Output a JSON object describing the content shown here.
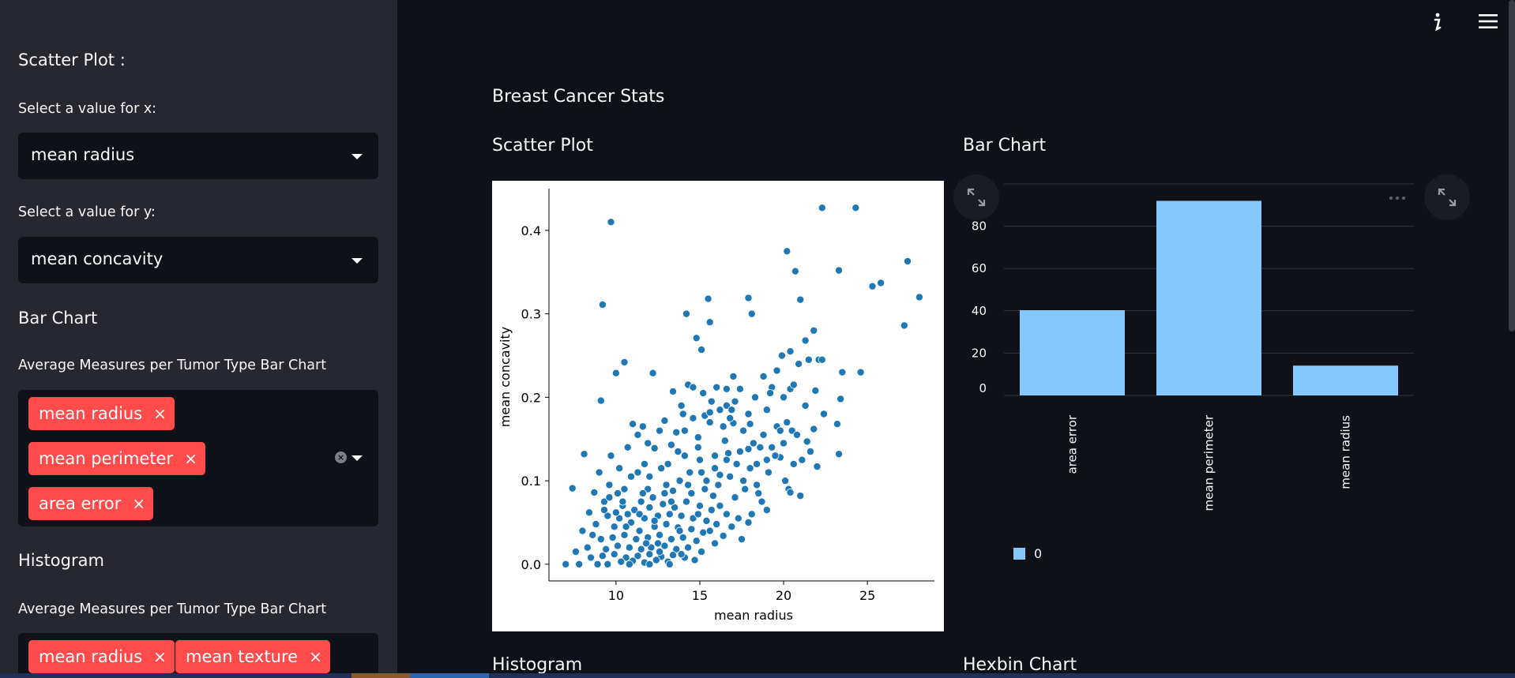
{
  "sidebar": {
    "scatter_title": "Scatter Plot :",
    "x_label": "Select a value for x:",
    "x_value": "mean radius",
    "y_label": "Select a value for y:",
    "y_value": "mean concavity",
    "bar_title": "Bar Chart",
    "bar_label": "Average Measures per Tumor Type Bar Chart",
    "bar_tags": [
      "mean radius",
      "mean perimeter",
      "area error"
    ],
    "hist_title": "Histogram",
    "hist_label": "Average Measures per Tumor Type Bar Chart",
    "hist_tags": [
      "mean radius",
      "mean texture"
    ],
    "tag_close": "×"
  },
  "main": {
    "title": "Breast Cancer Stats",
    "scatter_heading": "Scatter Plot",
    "bar_heading": "Bar Chart",
    "histogram_heading": "Histogram",
    "hexbin_heading": "Hexbin Chart",
    "info_icon": "info-icon",
    "menu_icon": "hamburger-menu-icon"
  },
  "colors": {
    "tag": "#ff4b4b",
    "scatter_point": "#1f77b4",
    "bar": "#83c9ff",
    "sidebar_bg": "#262730",
    "main_bg": "#0e1117"
  },
  "chart_data": [
    {
      "type": "scatter",
      "xlabel": "mean radius",
      "ylabel": "mean concavity",
      "xlim": [
        6.0,
        29.0
      ],
      "ylim": [
        -0.02,
        0.45
      ],
      "xticks": [
        10,
        15,
        20,
        25
      ],
      "yticks": [
        0.0,
        0.1,
        0.2,
        0.3,
        0.4
      ],
      "x_tick_labels": [
        "10",
        "15",
        "20",
        "25"
      ],
      "y_tick_labels": [
        "0.0",
        "0.1",
        "0.2",
        "0.3",
        "0.4"
      ],
      "points": [
        [
          9.7,
          0.41
        ],
        [
          22.3,
          0.427
        ],
        [
          24.3,
          0.427
        ],
        [
          27.4,
          0.363
        ],
        [
          28.1,
          0.32
        ],
        [
          25.8,
          0.337
        ],
        [
          25.3,
          0.333
        ],
        [
          27.2,
          0.286
        ],
        [
          23.3,
          0.352
        ],
        [
          20.7,
          0.351
        ],
        [
          20.2,
          0.375
        ],
        [
          9.2,
          0.311
        ],
        [
          15.5,
          0.318
        ],
        [
          17.9,
          0.319
        ],
        [
          21.0,
          0.317
        ],
        [
          15.6,
          0.29
        ],
        [
          14.2,
          0.3
        ],
        [
          18.1,
          0.3
        ],
        [
          21.8,
          0.28
        ],
        [
          21.3,
          0.268
        ],
        [
          14.8,
          0.271
        ],
        [
          20.4,
          0.255
        ],
        [
          19.9,
          0.25
        ],
        [
          15.1,
          0.257
        ],
        [
          22.1,
          0.245
        ],
        [
          21.5,
          0.245
        ],
        [
          20.9,
          0.24
        ],
        [
          19.6,
          0.232
        ],
        [
          24.6,
          0.23
        ],
        [
          23.5,
          0.23
        ],
        [
          10.5,
          0.242
        ],
        [
          10.0,
          0.229
        ],
        [
          12.2,
          0.229
        ],
        [
          9.1,
          0.196
        ],
        [
          14.3,
          0.215
        ],
        [
          14.6,
          0.212
        ],
        [
          16.0,
          0.212
        ],
        [
          17.4,
          0.21
        ],
        [
          19.3,
          0.212
        ],
        [
          20.4,
          0.21
        ],
        [
          18.8,
          0.225
        ],
        [
          17.0,
          0.225
        ],
        [
          16.6,
          0.21
        ],
        [
          13.4,
          0.207
        ],
        [
          15.2,
          0.205
        ],
        [
          23.4,
          0.198
        ],
        [
          21.3,
          0.19
        ],
        [
          20.0,
          0.2
        ],
        [
          18.3,
          0.2
        ],
        [
          16.6,
          0.19
        ],
        [
          15.7,
          0.195
        ],
        [
          13.9,
          0.19
        ],
        [
          16.9,
          0.185
        ],
        [
          11.0,
          0.168
        ],
        [
          11.6,
          0.165
        ],
        [
          12.9,
          0.172
        ],
        [
          14.6,
          0.175
        ],
        [
          15.6,
          0.17
        ],
        [
          17.0,
          0.169
        ],
        [
          18.0,
          0.168
        ],
        [
          19.6,
          0.165
        ],
        [
          20.5,
          0.16
        ],
        [
          21.8,
          0.162
        ],
        [
          23.2,
          0.168
        ],
        [
          13.6,
          0.158
        ],
        [
          11.3,
          0.155
        ],
        [
          14.9,
          0.152
        ],
        [
          16.5,
          0.148
        ],
        [
          18.2,
          0.145
        ],
        [
          19.3,
          0.14
        ],
        [
          20.8,
          0.155
        ],
        [
          21.4,
          0.147
        ],
        [
          23.3,
          0.132
        ],
        [
          22.0,
          0.117
        ],
        [
          20.3,
          0.09
        ],
        [
          20.4,
          0.086
        ],
        [
          19.1,
          0.11
        ],
        [
          18.0,
          0.115
        ],
        [
          17.2,
          0.12
        ],
        [
          8.1,
          0.132
        ],
        [
          9.7,
          0.13
        ],
        [
          12.3,
          0.139
        ],
        [
          13.3,
          0.143
        ],
        [
          14.1,
          0.13
        ],
        [
          15.0,
          0.125
        ],
        [
          15.9,
          0.13
        ],
        [
          16.7,
          0.133
        ],
        [
          17.9,
          0.138
        ],
        [
          19.0,
          0.125
        ],
        [
          19.8,
          0.128
        ],
        [
          16.2,
          0.107
        ],
        [
          17.6,
          0.1
        ],
        [
          18.4,
          0.095
        ],
        [
          15.4,
          0.1
        ],
        [
          14.4,
          0.11
        ],
        [
          12.7,
          0.115
        ],
        [
          11.7,
          0.12
        ],
        [
          10.9,
          0.105
        ],
        [
          9.6,
          0.095
        ],
        [
          8.7,
          0.086
        ],
        [
          7.4,
          0.091
        ],
        [
          10.1,
          0.085
        ],
        [
          11.9,
          0.09
        ],
        [
          13.4,
          0.088
        ],
        [
          15.8,
          0.082
        ],
        [
          17.1,
          0.08
        ],
        [
          18.7,
          0.075
        ],
        [
          9.3,
          0.075
        ],
        [
          10.4,
          0.07
        ],
        [
          11.1,
          0.065
        ],
        [
          12.0,
          0.068
        ],
        [
          12.8,
          0.072
        ],
        [
          13.5,
          0.068
        ],
        [
          14.2,
          0.075
        ],
        [
          15.0,
          0.07
        ],
        [
          15.7,
          0.065
        ],
        [
          16.6,
          0.06
        ],
        [
          17.3,
          0.055
        ],
        [
          18.1,
          0.06
        ],
        [
          16.0,
          0.048
        ],
        [
          15.4,
          0.052
        ],
        [
          14.6,
          0.055
        ],
        [
          13.9,
          0.058
        ],
        [
          13.2,
          0.06
        ],
        [
          12.5,
          0.058
        ],
        [
          11.7,
          0.055
        ],
        [
          10.9,
          0.05
        ],
        [
          10.2,
          0.055
        ],
        [
          9.5,
          0.058
        ],
        [
          8.8,
          0.048
        ],
        [
          9.9,
          0.045
        ],
        [
          11.4,
          0.04
        ],
        [
          12.3,
          0.045
        ],
        [
          13.0,
          0.048
        ],
        [
          13.7,
          0.044
        ],
        [
          14.5,
          0.042
        ],
        [
          15.2,
          0.038
        ],
        [
          16.4,
          0.034
        ],
        [
          17.5,
          0.03
        ],
        [
          15.9,
          0.025
        ],
        [
          8.6,
          0.035
        ],
        [
          9.1,
          0.03
        ],
        [
          9.8,
          0.032
        ],
        [
          10.5,
          0.035
        ],
        [
          11.2,
          0.03
        ],
        [
          11.9,
          0.032
        ],
        [
          12.6,
          0.035
        ],
        [
          13.3,
          0.03
        ],
        [
          14.0,
          0.032
        ],
        [
          14.8,
          0.028
        ],
        [
          8.3,
          0.02
        ],
        [
          9.4,
          0.018
        ],
        [
          10.1,
          0.022
        ],
        [
          10.8,
          0.02
        ],
        [
          11.5,
          0.018
        ],
        [
          12.1,
          0.02
        ],
        [
          12.9,
          0.022
        ],
        [
          13.6,
          0.018
        ],
        [
          14.3,
          0.02
        ],
        [
          15.1,
          0.015
        ],
        [
          8.5,
          0.008
        ],
        [
          9.2,
          0.01
        ],
        [
          9.9,
          0.012
        ],
        [
          10.6,
          0.008
        ],
        [
          11.3,
          0.01
        ],
        [
          12.0,
          0.012
        ],
        [
          12.7,
          0.009
        ],
        [
          13.4,
          0.011
        ],
        [
          14.1,
          0.008
        ],
        [
          14.7,
          0.005
        ],
        [
          10.3,
          0.003
        ],
        [
          11.0,
          0.004
        ],
        [
          11.7,
          0.002
        ],
        [
          12.4,
          0.005
        ],
        [
          13.1,
          0.003
        ],
        [
          7.0,
          0.0
        ],
        [
          7.8,
          0.0
        ],
        [
          8.9,
          0.0
        ],
        [
          9.5,
          0.0
        ],
        [
          10.8,
          0.0
        ],
        [
          12.0,
          0.0
        ],
        [
          13.2,
          0.0
        ],
        [
          10.0,
          0.062
        ],
        [
          10.7,
          0.06
        ],
        [
          11.5,
          0.075
        ],
        [
          12.2,
          0.08
        ],
        [
          13.0,
          0.095
        ],
        [
          13.8,
          0.1
        ],
        [
          14.5,
          0.085
        ],
        [
          15.3,
          0.09
        ],
        [
          16.1,
          0.095
        ],
        [
          16.8,
          0.105
        ],
        [
          17.7,
          0.09
        ],
        [
          18.5,
          0.085
        ],
        [
          19.5,
          0.13
        ],
        [
          20.0,
          0.145
        ],
        [
          20.6,
          0.12
        ],
        [
          21.1,
          0.125
        ],
        [
          18.8,
          0.155
        ],
        [
          17.6,
          0.16
        ],
        [
          16.4,
          0.165
        ],
        [
          15.3,
          0.178
        ],
        [
          14.0,
          0.18
        ],
        [
          12.6,
          0.16
        ],
        [
          11.9,
          0.145
        ],
        [
          10.7,
          0.14
        ],
        [
          10.2,
          0.115
        ],
        [
          9.0,
          0.11
        ],
        [
          8.4,
          0.062
        ],
        [
          8.0,
          0.04
        ],
        [
          7.6,
          0.015
        ],
        [
          12.5,
          0.025
        ],
        [
          13.8,
          0.04
        ],
        [
          14.9,
          0.06
        ],
        [
          16.2,
          0.07
        ],
        [
          17.9,
          0.05
        ],
        [
          19.0,
          0.065
        ],
        [
          20.1,
          0.1
        ],
        [
          21.0,
          0.082
        ],
        [
          22.4,
          0.18
        ],
        [
          20.2,
          0.17
        ],
        [
          19.0,
          0.185
        ],
        [
          17.9,
          0.18
        ],
        [
          16.8,
          0.175
        ],
        [
          15.6,
          0.182
        ],
        [
          14.1,
          0.16
        ],
        [
          13.1,
          0.12
        ],
        [
          12.0,
          0.105
        ],
        [
          11.3,
          0.11
        ],
        [
          10.5,
          0.09
        ],
        [
          9.6,
          0.08
        ],
        [
          11.8,
          0.025
        ],
        [
          12.6,
          0.015
        ],
        [
          13.9,
          0.012
        ],
        [
          15.6,
          0.04
        ],
        [
          16.9,
          0.045
        ],
        [
          18.4,
          0.12
        ],
        [
          19.8,
          0.16
        ],
        [
          21.6,
          0.135
        ],
        [
          22.3,
          0.245
        ],
        [
          21.9,
          0.208
        ],
        [
          20.6,
          0.215
        ],
        [
          19.2,
          0.205
        ],
        [
          17.1,
          0.195
        ],
        [
          16.2,
          0.185
        ],
        [
          14.9,
          0.14
        ],
        [
          13.7,
          0.135
        ],
        [
          12.9,
          0.085
        ],
        [
          11.6,
          0.085
        ],
        [
          10.4,
          0.075
        ],
        [
          9.3,
          0.065
        ],
        [
          10.6,
          0.045
        ],
        [
          11.4,
          0.06
        ],
        [
          12.3,
          0.052
        ],
        [
          13.3,
          0.075
        ],
        [
          14.3,
          0.095
        ],
        [
          15.1,
          0.11
        ],
        [
          15.9,
          0.115
        ],
        [
          16.6,
          0.125
        ],
        [
          17.4,
          0.135
        ],
        [
          18.6,
          0.14
        ]
      ]
    },
    {
      "type": "bar",
      "categories": [
        "area error",
        "mean perimeter",
        "mean radius"
      ],
      "values": [
        40.3,
        92.0,
        14.1
      ],
      "ylim": [
        0,
        100
      ],
      "yticks": [
        0,
        20,
        40,
        60,
        80
      ],
      "y_tick_labels": [
        "0",
        "20",
        "40",
        "60",
        "80"
      ],
      "series": [
        {
          "name": "0",
          "values": [
            40.3,
            92.0,
            14.1
          ]
        }
      ]
    }
  ]
}
